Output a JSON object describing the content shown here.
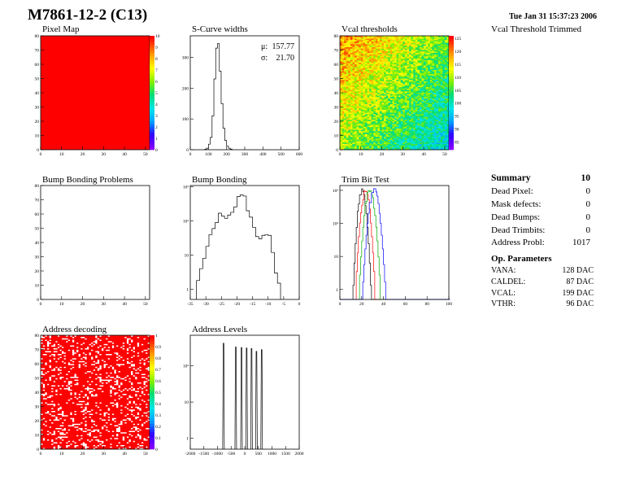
{
  "header": {
    "title": "M7861-12-2 (C13)",
    "timestamp": "Tue Jan 31 15:37:23 2006"
  },
  "chart_data": [
    {
      "id": "pixel_map",
      "type": "heatmap",
      "title": "Pixel Map",
      "x_ticks": [
        "0",
        "10",
        "20",
        "30",
        "40",
        "50"
      ],
      "y_ticks": [
        "0",
        "10",
        "20",
        "30",
        "40",
        "50",
        "60",
        "70",
        "80"
      ],
      "xlim": [
        0,
        52
      ],
      "ylim": [
        0,
        80
      ],
      "grid_cols": 52,
      "grid_rows": 80,
      "uniform_value": 10,
      "zlim": [
        0,
        10
      ],
      "z_ticks": [
        "0",
        "1",
        "2",
        "3",
        "4",
        "5",
        "6",
        "7",
        "8",
        "9",
        "10"
      ]
    },
    {
      "id": "scurve_widths",
      "type": "histogram",
      "title": "S-Curve widths",
      "x_ticks": [
        "0",
        "100",
        "200",
        "300",
        "400",
        "500",
        "600"
      ],
      "y_ticks": [
        "0",
        "100",
        "200",
        "300"
      ],
      "xlim": [
        0,
        600
      ],
      "ylim": [
        0,
        370
      ],
      "mean_label": "μ:",
      "mean_value": "157.77",
      "sigma_label": "σ:",
      "sigma_value": "21.70",
      "bins": [
        [
          80,
          2
        ],
        [
          90,
          5
        ],
        [
          100,
          18
        ],
        [
          110,
          40
        ],
        [
          120,
          110
        ],
        [
          130,
          230
        ],
        [
          140,
          330
        ],
        [
          150,
          345
        ],
        [
          160,
          255
        ],
        [
          170,
          150
        ],
        [
          180,
          70
        ],
        [
          190,
          30
        ],
        [
          200,
          12
        ],
        [
          210,
          5
        ],
        [
          220,
          2
        ]
      ],
      "bin_width": 10
    },
    {
      "id": "vcal_thresholds",
      "type": "heatmap",
      "title": "Vcal thresholds",
      "x_ticks": [
        "0",
        "10",
        "20",
        "30",
        "40",
        "50"
      ],
      "y_ticks": [
        "0",
        "10",
        "20",
        "30",
        "40",
        "50",
        "60",
        "70",
        "80"
      ],
      "xlim": [
        0,
        52
      ],
      "ylim": [
        0,
        80
      ],
      "grid_cols": 52,
      "grid_rows": 80,
      "zlim": [
        82,
        126
      ],
      "z_ticks": [
        "85",
        "90",
        "95",
        "100",
        "105",
        "110",
        "115",
        "120",
        "125"
      ],
      "value_top_left": 120,
      "value_bottom_right": 97
    },
    {
      "id": "bump_bonding_problems",
      "type": "heatmap",
      "title": "Bump Bonding Problems",
      "x_ticks": [
        "0",
        "10",
        "20",
        "30",
        "40",
        "50"
      ],
      "y_ticks": [
        "0",
        "10",
        "20",
        "30",
        "40",
        "50",
        "60",
        "70",
        "80"
      ],
      "xlim": [
        0,
        52
      ],
      "ylim": [
        0,
        80
      ],
      "cells": []
    },
    {
      "id": "bump_bonding",
      "type": "histogram",
      "title": "Bump Bonding",
      "log_y": true,
      "x_ticks": [
        "-35",
        "-30",
        "-25",
        "-20",
        "-15",
        "-10",
        "-5",
        "0"
      ],
      "y_ticks": [
        "1",
        "10",
        "10²",
        "10³"
      ],
      "xlim": [
        -35,
        0
      ],
      "ylim": [
        0.5,
        1100
      ],
      "bin_width": 1,
      "bins": [
        [
          -33,
          1.8
        ],
        [
          -32,
          4
        ],
        [
          -31,
          8
        ],
        [
          -30,
          18
        ],
        [
          -29,
          40
        ],
        [
          -28,
          60
        ],
        [
          -27,
          90
        ],
        [
          -26,
          170
        ],
        [
          -25,
          140
        ],
        [
          -24,
          120
        ],
        [
          -23,
          150
        ],
        [
          -22,
          180
        ],
        [
          -21,
          260
        ],
        [
          -20,
          520
        ],
        [
          -19,
          580
        ],
        [
          -18,
          540
        ],
        [
          -17,
          200
        ],
        [
          -16,
          130
        ],
        [
          -15,
          65
        ],
        [
          -14,
          35
        ],
        [
          -13,
          30
        ],
        [
          -12,
          38
        ],
        [
          -11,
          40
        ],
        [
          -10,
          38
        ],
        [
          -9,
          12
        ],
        [
          -8,
          3
        ],
        [
          -7,
          1.5
        ]
      ]
    },
    {
      "id": "trim_bit_test",
      "type": "line",
      "title": "Trim Bit Test",
      "log_y": true,
      "x_ticks": [
        "0",
        "20",
        "40",
        "60",
        "80",
        "100"
      ],
      "y_ticks": [
        "1",
        "10",
        "10²",
        "10³"
      ],
      "xlim": [
        0,
        100
      ],
      "ylim": [
        0.5,
        1400
      ],
      "series": [
        {
          "color": "#000000",
          "mean": 20,
          "sigma": 2.2,
          "peak": 1000
        },
        {
          "color": "#ff0000",
          "mean": 23,
          "sigma": 2.4,
          "peak": 900
        },
        {
          "color": "#00aa00",
          "mean": 27,
          "sigma": 2.6,
          "peak": 1100
        },
        {
          "color": "#0000ff",
          "mean": 31,
          "sigma": 2.8,
          "peak": 1000
        }
      ]
    },
    {
      "id": "address_decoding",
      "type": "heatmap",
      "title": "Address decoding",
      "x_ticks": [
        "0",
        "10",
        "20",
        "30",
        "40",
        "50"
      ],
      "y_ticks": [
        "0",
        "10",
        "20",
        "30",
        "40",
        "50",
        "60",
        "70",
        "80"
      ],
      "xlim": [
        0,
        52
      ],
      "ylim": [
        0,
        80
      ],
      "grid_cols": 52,
      "grid_rows": 80,
      "zlim": [
        0,
        1
      ],
      "z_ticks": [
        "0",
        "0.1",
        "0.2",
        "0.3",
        "0.4",
        "0.5",
        "0.6",
        "0.7",
        "0.8",
        "0.9",
        "1"
      ],
      "filled_fraction": 0.78
    },
    {
      "id": "address_levels",
      "type": "histogram",
      "title": "Address Levels",
      "log_y": true,
      "x_ticks": [
        "-2000",
        "-1500",
        "-1000",
        "-500",
        "0",
        "500",
        "1000",
        "1500",
        "2000"
      ],
      "y_ticks": [
        "1",
        "10",
        "10²"
      ],
      "xlim": [
        -2000,
        2000
      ],
      "ylim": [
        0.5,
        700
      ],
      "peaks": [
        [
          -780,
          420
        ],
        [
          -330,
          330
        ],
        [
          -120,
          320
        ],
        [
          70,
          310
        ],
        [
          250,
          300
        ],
        [
          430,
          250
        ],
        [
          620,
          280
        ]
      ]
    }
  ],
  "trimmed_panel": {
    "title": "Vcal Threshold Trimmed"
  },
  "summary": {
    "title": "Summary",
    "total": "10",
    "rows": [
      {
        "label": "Dead Pixel:",
        "value": "0"
      },
      {
        "label": "Mask defects:",
        "value": "0"
      },
      {
        "label": "Dead Bumps:",
        "value": "0"
      },
      {
        "label": "Dead Trimbits:",
        "value": "0"
      },
      {
        "label": "Address Probl:",
        "value": "1017"
      }
    ]
  },
  "op_parameters": {
    "title": "Op. Parameters",
    "rows": [
      {
        "label": "VANA:",
        "value": "128 DAC"
      },
      {
        "label": "CALDEL:",
        "value": "87 DAC"
      },
      {
        "label": "VCAL:",
        "value": "199 DAC"
      },
      {
        "label": "VTHR:",
        "value": "96 DAC"
      }
    ]
  }
}
